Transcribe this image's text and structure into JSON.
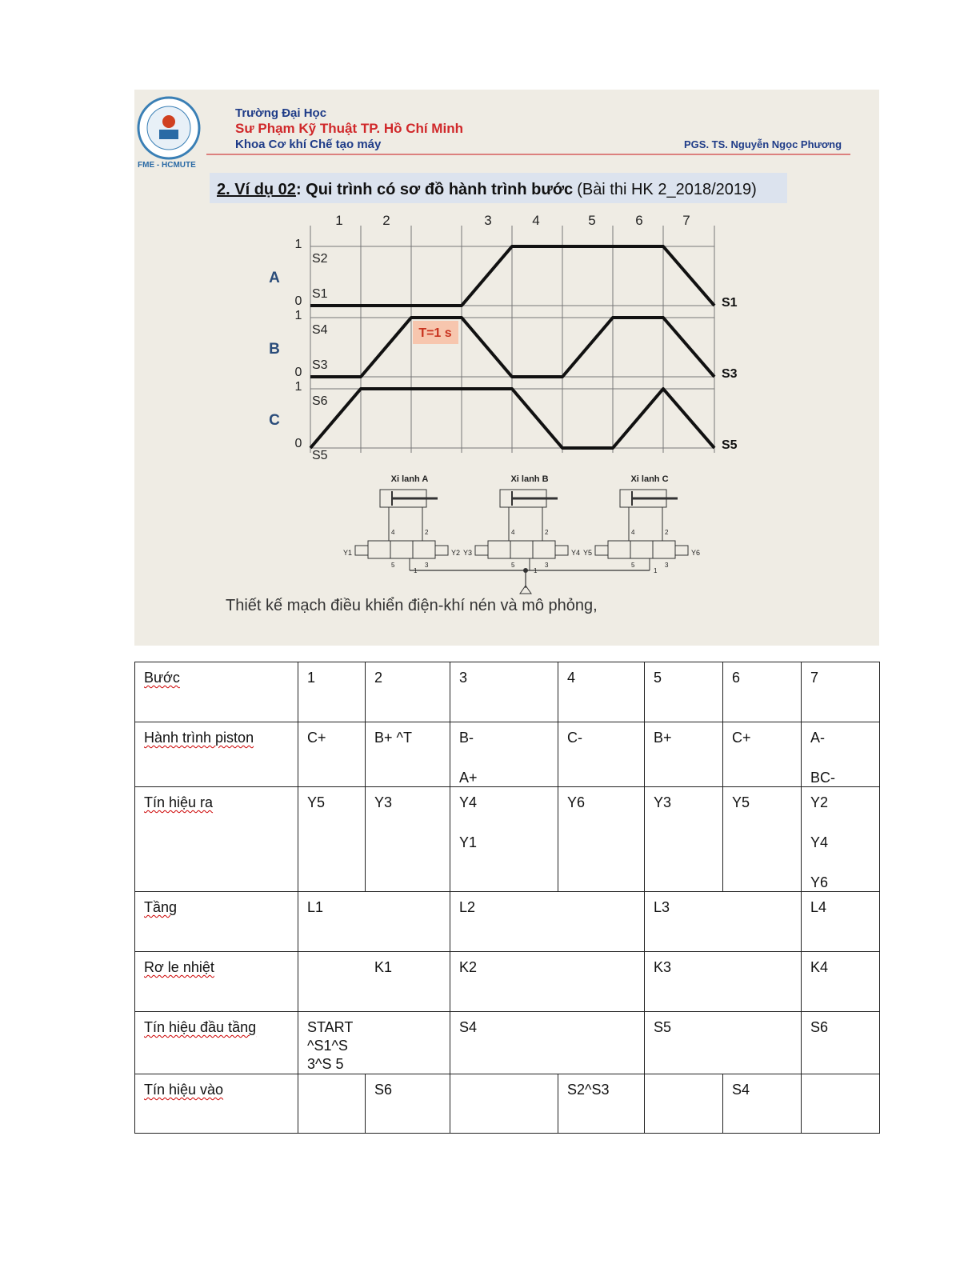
{
  "slide": {
    "logo_text": "FME - HCMUTE",
    "university": [
      "Trường Đại Học",
      "Sư Phạm Kỹ Thuật TP. Hồ Chí Minh",
      "Khoa Cơ khí Chế tạo máy"
    ],
    "author": "PGS. TS. Nguyễn Ngọc Phương",
    "heading": {
      "label": "2. Ví dụ 02",
      "text": ": Qui trình có sơ đồ hành trình bước",
      "note": "(Bài thi HK 2_2018/2019)"
    },
    "diagram": {
      "steps": [
        "1",
        "2",
        "3",
        "4",
        "5",
        "6",
        "7"
      ],
      "rows": [
        {
          "name": "A",
          "top": "1",
          "bottom": "0",
          "top_sensor": "S2",
          "bottom_sensor": "S1",
          "end_label": "S1"
        },
        {
          "name": "B",
          "top": "1",
          "bottom": "0",
          "top_sensor": "S4",
          "bottom_sensor": "S3",
          "end_label": "S3"
        },
        {
          "name": "C",
          "top": "1",
          "bottom": "0",
          "top_sensor": "S6",
          "bottom_sensor": "S5",
          "end_label": "S5"
        }
      ],
      "timer": "T=1 s"
    },
    "cylinders": [
      "Xi lanh A",
      "Xi lanh B",
      "Xi lanh C"
    ],
    "valves": [
      {
        "left": "Y1",
        "right": "Y2"
      },
      {
        "left": "Y3",
        "right": "Y4"
      },
      {
        "left": "Y5",
        "right": "Y6"
      }
    ],
    "ports": [
      "4",
      "2",
      "5",
      "3",
      "1"
    ],
    "caption": "Thiết kế mạch điều khiển điện-khí nén và mô phỏng,"
  },
  "table": {
    "rows": [
      [
        "Bước",
        "1",
        "2",
        "3",
        "4",
        "5",
        "6",
        "7"
      ],
      [
        "Hành trình piston",
        "C+",
        "B+ ^T",
        [
          "B-",
          "A+"
        ],
        "C-",
        "B+",
        "C+",
        [
          "A-",
          "BC-"
        ]
      ],
      [
        "Tín hiệu ra",
        "Y5",
        "Y3",
        [
          "Y4",
          "Y1"
        ],
        "Y6",
        "Y3",
        "Y5",
        [
          "Y2",
          "Y4",
          "Y6"
        ]
      ],
      [
        "Tầng",
        "L1",
        "L2",
        "L3",
        "L4"
      ],
      [
        "Rơ le nhiệt",
        "K1",
        "K2",
        "K3",
        "K4"
      ],
      [
        "Tín hiệu đầu tầng",
        "START ^S1^S 3^S 5",
        "S4",
        "S5",
        "S6"
      ],
      [
        "Tín hiệu vào",
        "S6",
        "S2^S3",
        "S4"
      ]
    ]
  }
}
